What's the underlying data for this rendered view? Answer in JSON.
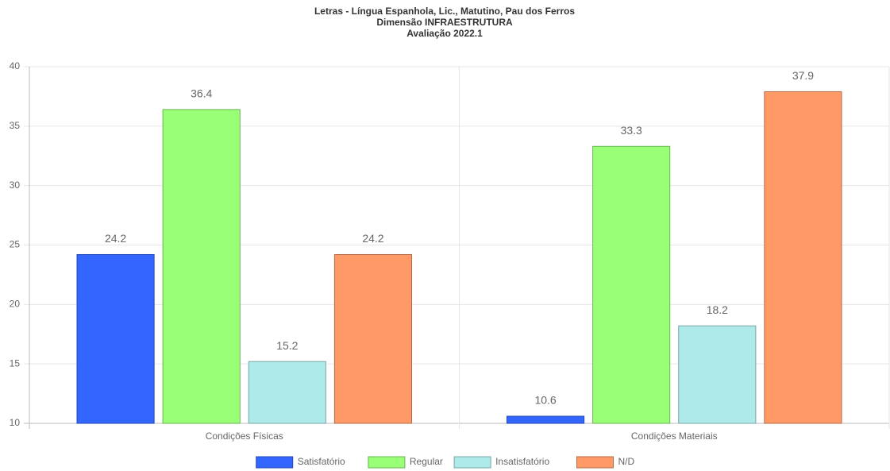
{
  "chart_data": {
    "type": "bar",
    "title": [
      "Letras - Língua Espanhola, Lic., Matutino, Pau dos Ferros",
      "Dimensão INFRAESTRUTURA",
      "Avaliação 2022.1"
    ],
    "categories": [
      "Condições Físicas",
      "Condições Materiais"
    ],
    "series": [
      {
        "name": "Satisfatório",
        "color": "#3366ff",
        "values": [
          24.2,
          10.6
        ]
      },
      {
        "name": "Regular",
        "color": "#99ff77",
        "values": [
          36.4,
          33.3
        ]
      },
      {
        "name": "Insatisfatório",
        "color": "#aeeaea",
        "values": [
          15.2,
          18.2
        ]
      },
      {
        "name": "N/D",
        "color": "#ff9966",
        "values": [
          24.2,
          37.9
        ]
      }
    ],
    "ylim": [
      10,
      40
    ],
    "yticks": [
      10,
      15,
      20,
      25,
      30,
      35,
      40
    ],
    "grid": true,
    "legend": "bottom"
  }
}
